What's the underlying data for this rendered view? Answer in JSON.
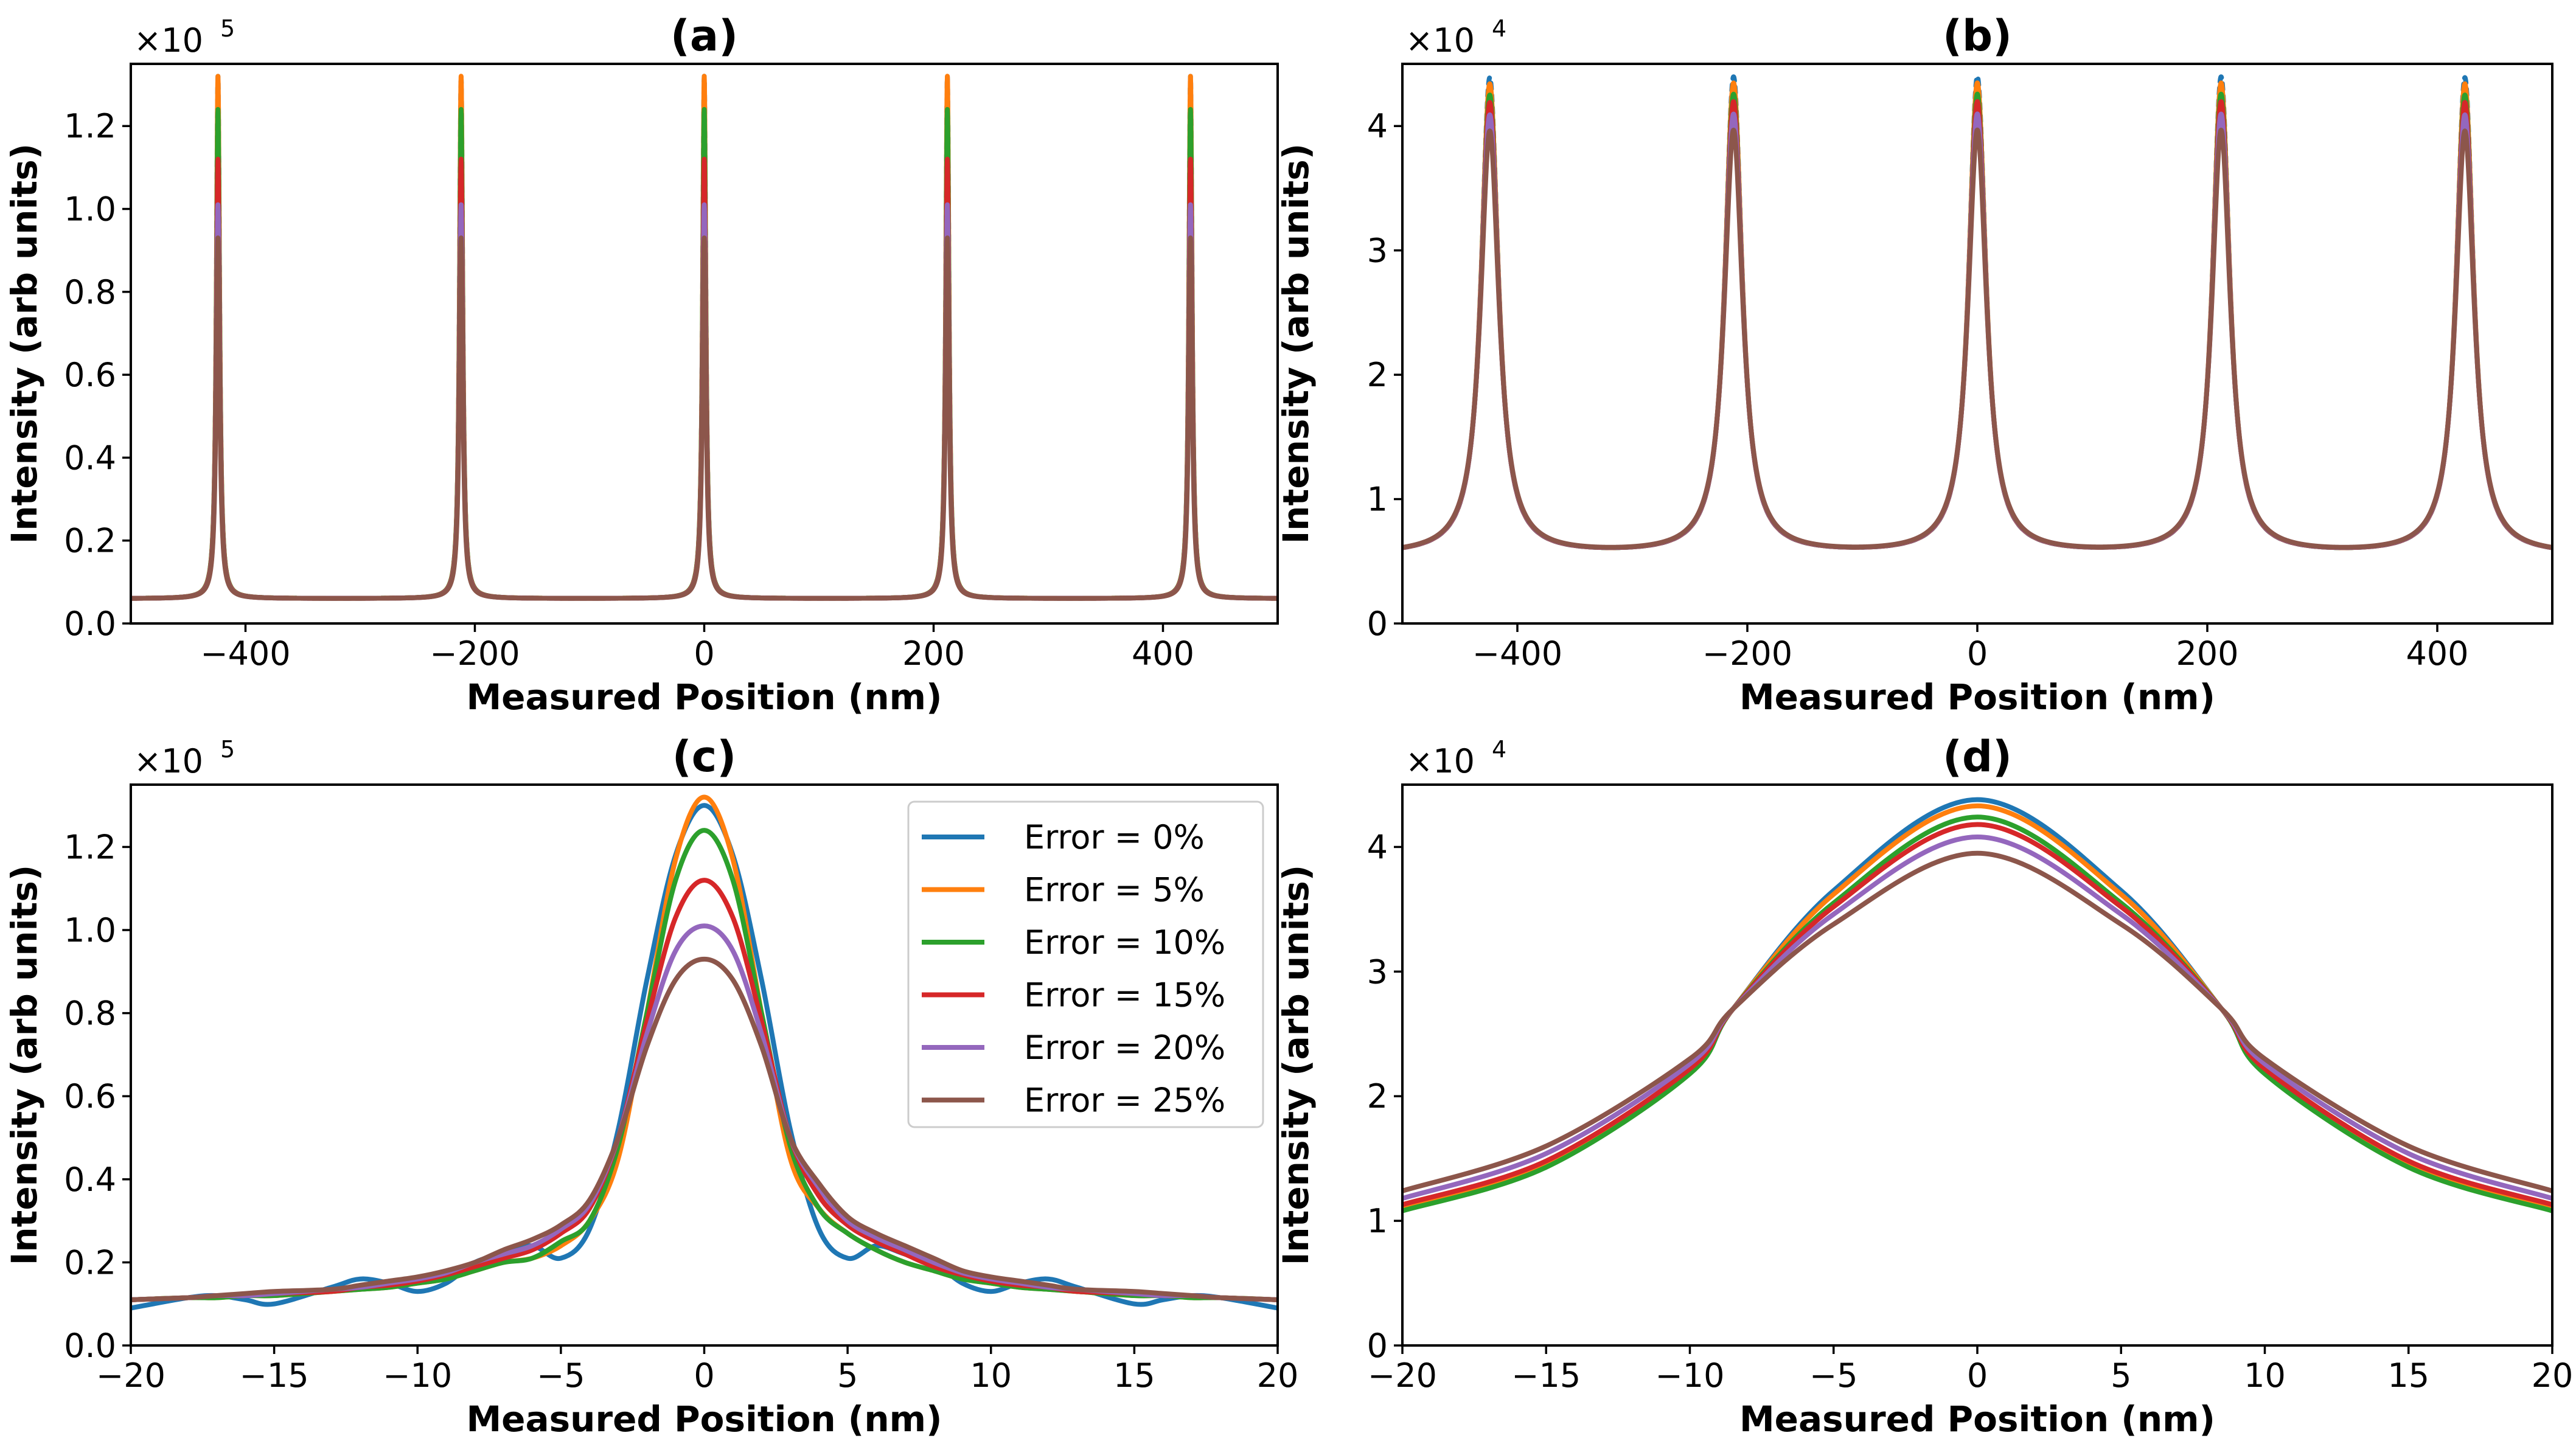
{
  "colors": {
    "s0": "#1f77b4",
    "s1": "#ff7f0e",
    "s2": "#2ca02c",
    "s3": "#d62728",
    "s4": "#9467bd",
    "s5": "#8c564b"
  },
  "chart_data": [
    {
      "id": "a",
      "type": "line",
      "title": "(a)",
      "xlabel": "Measured Position (nm)",
      "ylabel": "Intensity (arb units)",
      "y_multiplier_base": "×10",
      "y_multiplier_exp": "5",
      "xlim": [
        -500,
        500
      ],
      "ylim": [
        0,
        1.35
      ],
      "y_scale_factor": 100000,
      "xticks": [
        -400,
        -200,
        0,
        200,
        400
      ],
      "xtick_labels": [
        "−400",
        "−200",
        "0",
        "200",
        "400"
      ],
      "yticks": [
        0,
        0.2,
        0.4,
        0.6,
        0.8,
        1.0,
        1.2
      ],
      "ytick_labels": [
        "0.0",
        "0.2",
        "0.4",
        "0.6",
        "0.8",
        "1.0",
        "1.2"
      ],
      "grid": false,
      "legend": null,
      "model": "lorentz",
      "peak_centers": [
        -424,
        -212,
        0,
        212,
        424
      ],
      "series": [
        {
          "peak": 1.32,
          "base": 0.06,
          "halfwidth": 1.7
        },
        {
          "peak": 1.32,
          "base": 0.06,
          "halfwidth": 1.7
        },
        {
          "peak": 1.24,
          "base": 0.06,
          "halfwidth": 1.75
        },
        {
          "peak": 1.12,
          "base": 0.06,
          "halfwidth": 1.8
        },
        {
          "peak": 1.01,
          "base": 0.06,
          "halfwidth": 1.85
        },
        {
          "peak": 0.93,
          "base": 0.06,
          "halfwidth": 1.9
        }
      ]
    },
    {
      "id": "b",
      "type": "line",
      "title": "(b)",
      "xlabel": "Measured Position (nm)",
      "ylabel": "Intensity (arb units)",
      "y_multiplier_base": "×10",
      "y_multiplier_exp": "4",
      "xlim": [
        -500,
        500
      ],
      "ylim": [
        0,
        4.5
      ],
      "y_scale_factor": 10000,
      "xticks": [
        -400,
        -200,
        0,
        200,
        400
      ],
      "xtick_labels": [
        "−400",
        "−200",
        "0",
        "200",
        "400"
      ],
      "yticks": [
        0,
        1,
        2,
        3,
        4
      ],
      "ytick_labels": [
        "0",
        "1",
        "2",
        "3",
        "4"
      ],
      "grid": false,
      "legend": null,
      "model": "lorentz",
      "peak_centers": [
        -424,
        -212,
        0,
        212,
        424
      ],
      "series": [
        {
          "peak": 4.38,
          "base": 0.55,
          "halfwidth": 9
        },
        {
          "peak": 4.33,
          "base": 0.55,
          "halfwidth": 9.1
        },
        {
          "peak": 4.24,
          "base": 0.55,
          "halfwidth": 9.2
        },
        {
          "peak": 4.18,
          "base": 0.55,
          "halfwidth": 9.3
        },
        {
          "peak": 4.08,
          "base": 0.55,
          "halfwidth": 9.5
        },
        {
          "peak": 3.95,
          "base": 0.55,
          "halfwidth": 9.8
        }
      ]
    },
    {
      "id": "c",
      "type": "line",
      "title": "(c)",
      "xlabel": "Measured Position (nm)",
      "ylabel": "Intensity (arb units)",
      "y_multiplier_base": "×10",
      "y_multiplier_exp": "5",
      "xlim": [
        -20,
        20
      ],
      "ylim": [
        0,
        1.35
      ],
      "y_scale_factor": 100000,
      "xticks": [
        -20,
        -15,
        -10,
        -5,
        0,
        5,
        10,
        15,
        20
      ],
      "xtick_labels": [
        "−20",
        "−15",
        "−10",
        "−5",
        "0",
        "5",
        "10",
        "15",
        "20"
      ],
      "yticks": [
        0,
        0.2,
        0.4,
        0.6,
        0.8,
        1.0,
        1.2
      ],
      "ytick_labels": [
        "0.0",
        "0.2",
        "0.4",
        "0.6",
        "0.8",
        "1.0",
        "1.2"
      ],
      "grid": false,
      "legend": "top-right",
      "model": "table",
      "x": [
        -20,
        -18,
        -17,
        -16,
        -15,
        -13,
        -12,
        -11,
        -10,
        -9,
        -8,
        -7,
        -6,
        -5,
        -4,
        -3,
        -2,
        -1,
        0,
        1,
        2,
        3,
        4,
        5,
        6,
        7,
        8,
        9,
        10,
        11,
        12,
        13,
        15,
        16,
        17,
        18,
        20
      ],
      "series": [
        {
          "name": "Error = 0%",
          "values": [
            0.09,
            0.115,
            0.12,
            0.11,
            0.1,
            0.14,
            0.16,
            0.15,
            0.13,
            0.15,
            0.2,
            0.22,
            0.24,
            0.21,
            0.28,
            0.52,
            0.88,
            1.18,
            1.3,
            1.18,
            0.88,
            0.52,
            0.28,
            0.21,
            0.24,
            0.22,
            0.2,
            0.15,
            0.13,
            0.15,
            0.16,
            0.14,
            0.1,
            0.11,
            0.12,
            0.115,
            0.09
          ]
        },
        {
          "name": "Error = 5%",
          "values": [
            0.11,
            0.115,
            0.115,
            0.12,
            0.12,
            0.13,
            0.135,
            0.14,
            0.15,
            0.16,
            0.18,
            0.2,
            0.21,
            0.24,
            0.3,
            0.45,
            0.8,
            1.17,
            1.32,
            1.17,
            0.8,
            0.45,
            0.33,
            0.27,
            0.23,
            0.2,
            0.18,
            0.16,
            0.15,
            0.14,
            0.135,
            0.13,
            0.12,
            0.12,
            0.115,
            0.115,
            0.11
          ]
        },
        {
          "name": "Error = 10%",
          "values": [
            0.11,
            0.115,
            0.115,
            0.12,
            0.12,
            0.13,
            0.135,
            0.14,
            0.15,
            0.16,
            0.18,
            0.2,
            0.21,
            0.25,
            0.3,
            0.48,
            0.8,
            1.12,
            1.24,
            1.12,
            0.8,
            0.48,
            0.33,
            0.27,
            0.23,
            0.2,
            0.18,
            0.16,
            0.15,
            0.14,
            0.135,
            0.13,
            0.12,
            0.12,
            0.115,
            0.115,
            0.11
          ]
        },
        {
          "name": "Error = 15%",
          "values": [
            0.11,
            0.115,
            0.12,
            0.12,
            0.125,
            0.13,
            0.14,
            0.145,
            0.155,
            0.17,
            0.19,
            0.21,
            0.23,
            0.27,
            0.33,
            0.5,
            0.78,
            1.03,
            1.12,
            1.03,
            0.78,
            0.5,
            0.36,
            0.29,
            0.25,
            0.22,
            0.19,
            0.17,
            0.155,
            0.145,
            0.14,
            0.13,
            0.125,
            0.12,
            0.12,
            0.115,
            0.11
          ]
        },
        {
          "name": "Error = 20%",
          "values": [
            0.11,
            0.115,
            0.12,
            0.12,
            0.125,
            0.135,
            0.14,
            0.15,
            0.16,
            0.175,
            0.2,
            0.22,
            0.24,
            0.28,
            0.34,
            0.5,
            0.75,
            0.95,
            1.01,
            0.95,
            0.75,
            0.5,
            0.38,
            0.3,
            0.26,
            0.23,
            0.2,
            0.175,
            0.16,
            0.15,
            0.14,
            0.135,
            0.125,
            0.12,
            0.12,
            0.115,
            0.11
          ]
        },
        {
          "name": "Error = 25%",
          "values": [
            0.11,
            0.115,
            0.12,
            0.125,
            0.13,
            0.135,
            0.145,
            0.155,
            0.165,
            0.18,
            0.2,
            0.23,
            0.255,
            0.29,
            0.35,
            0.5,
            0.72,
            0.88,
            0.93,
            0.88,
            0.72,
            0.5,
            0.39,
            0.31,
            0.27,
            0.24,
            0.21,
            0.18,
            0.165,
            0.155,
            0.145,
            0.135,
            0.13,
            0.125,
            0.12,
            0.115,
            0.11
          ]
        }
      ]
    },
    {
      "id": "d",
      "type": "line",
      "title": "(d)",
      "xlabel": "Measured Position (nm)",
      "ylabel": "Intensity (arb units)",
      "y_multiplier_base": "×10",
      "y_multiplier_exp": "4",
      "xlim": [
        -20,
        20
      ],
      "ylim": [
        0,
        4.5
      ],
      "y_scale_factor": 10000,
      "xticks": [
        -20,
        -15,
        -10,
        -5,
        0,
        5,
        10,
        15,
        20
      ],
      "xtick_labels": [
        "−20",
        "−15",
        "−10",
        "−5",
        "0",
        "5",
        "10",
        "15",
        "20"
      ],
      "yticks": [
        0,
        1,
        2,
        3,
        4
      ],
      "ytick_labels": [
        "0",
        "1",
        "2",
        "3",
        "4"
      ],
      "grid": false,
      "legend": null,
      "model": "table",
      "x": [
        -20,
        -15,
        -10,
        -8.5,
        -5,
        0,
        5,
        8.5,
        10,
        15,
        20
      ],
      "series": [
        {
          "values": [
            1.1,
            1.45,
            2.2,
            2.7,
            3.65,
            4.38,
            3.65,
            2.7,
            2.2,
            1.45,
            1.1
          ]
        },
        {
          "values": [
            1.1,
            1.45,
            2.2,
            2.7,
            3.62,
            4.33,
            3.62,
            2.7,
            2.2,
            1.45,
            1.1
          ]
        },
        {
          "values": [
            1.08,
            1.43,
            2.18,
            2.7,
            3.55,
            4.24,
            3.55,
            2.7,
            2.18,
            1.43,
            1.08
          ]
        },
        {
          "values": [
            1.13,
            1.48,
            2.22,
            2.7,
            3.52,
            4.18,
            3.52,
            2.7,
            2.22,
            1.48,
            1.13
          ]
        },
        {
          "values": [
            1.18,
            1.54,
            2.26,
            2.7,
            3.46,
            4.08,
            3.46,
            2.7,
            2.26,
            1.54,
            1.18
          ]
        },
        {
          "values": [
            1.24,
            1.6,
            2.3,
            2.7,
            3.38,
            3.95,
            3.38,
            2.7,
            2.3,
            1.6,
            1.24
          ]
        }
      ]
    }
  ]
}
